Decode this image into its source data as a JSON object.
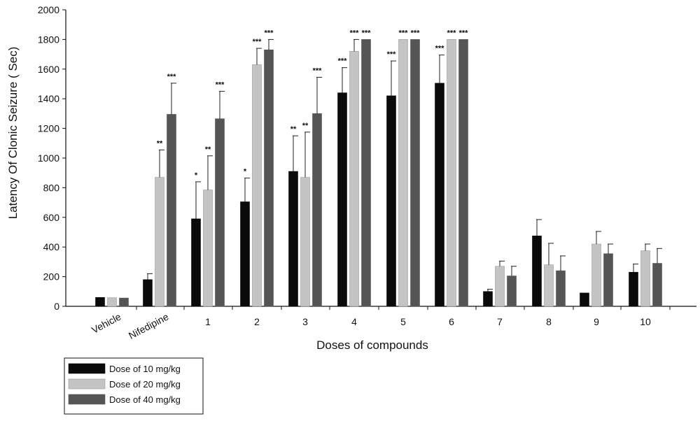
{
  "chart_data": {
    "type": "bar",
    "ylabel": "Latency Of Clonic Seizure ( Sec)",
    "xlabel": "Doses of compounds",
    "ylim": [
      0,
      2000
    ],
    "yticks": [
      0,
      200,
      400,
      600,
      800,
      1000,
      1200,
      1400,
      1600,
      1800,
      2000
    ],
    "categories": [
      "Vehicle",
      "Nifedipine",
      "1",
      "2",
      "3",
      "4",
      "5",
      "6",
      "7",
      "8",
      "9",
      "10"
    ],
    "series": [
      {
        "name": "Dose of 10 mg/kg",
        "color": "#0a0a0a",
        "values": [
          60,
          180,
          590,
          705,
          910,
          1440,
          1420,
          1505,
          100,
          475,
          90,
          230
        ],
        "errors": [
          0,
          40,
          250,
          160,
          240,
          170,
          235,
          190,
          15,
          110,
          0,
          55
        ],
        "sig": [
          "",
          "",
          "*",
          "*",
          "**",
          "***",
          "***",
          "***",
          "",
          "",
          "",
          ""
        ]
      },
      {
        "name": "Dose of 20 mg/kg",
        "color": "#c4c4c4",
        "values": [
          58,
          870,
          785,
          1630,
          870,
          1720,
          1800,
          1800,
          270,
          280,
          420,
          375
        ],
        "errors": [
          0,
          185,
          230,
          110,
          305,
          80,
          0,
          0,
          35,
          145,
          85,
          45
        ],
        "sig": [
          "",
          "**",
          "**",
          "***",
          "**",
          "***",
          "***",
          "***",
          "",
          "",
          "",
          ""
        ]
      },
      {
        "name": "Dose of 40 mg/kg",
        "color": "#555555",
        "values": [
          56,
          1295,
          1265,
          1730,
          1300,
          1800,
          1800,
          1800,
          205,
          240,
          355,
          290
        ],
        "errors": [
          0,
          210,
          185,
          70,
          245,
          0,
          0,
          0,
          65,
          100,
          65,
          100
        ],
        "sig": [
          "",
          "***",
          "***",
          "***",
          "***",
          "***",
          "***",
          "***",
          "",
          "",
          "",
          ""
        ]
      }
    ],
    "grid": false,
    "legend_position": "bottom-left"
  }
}
